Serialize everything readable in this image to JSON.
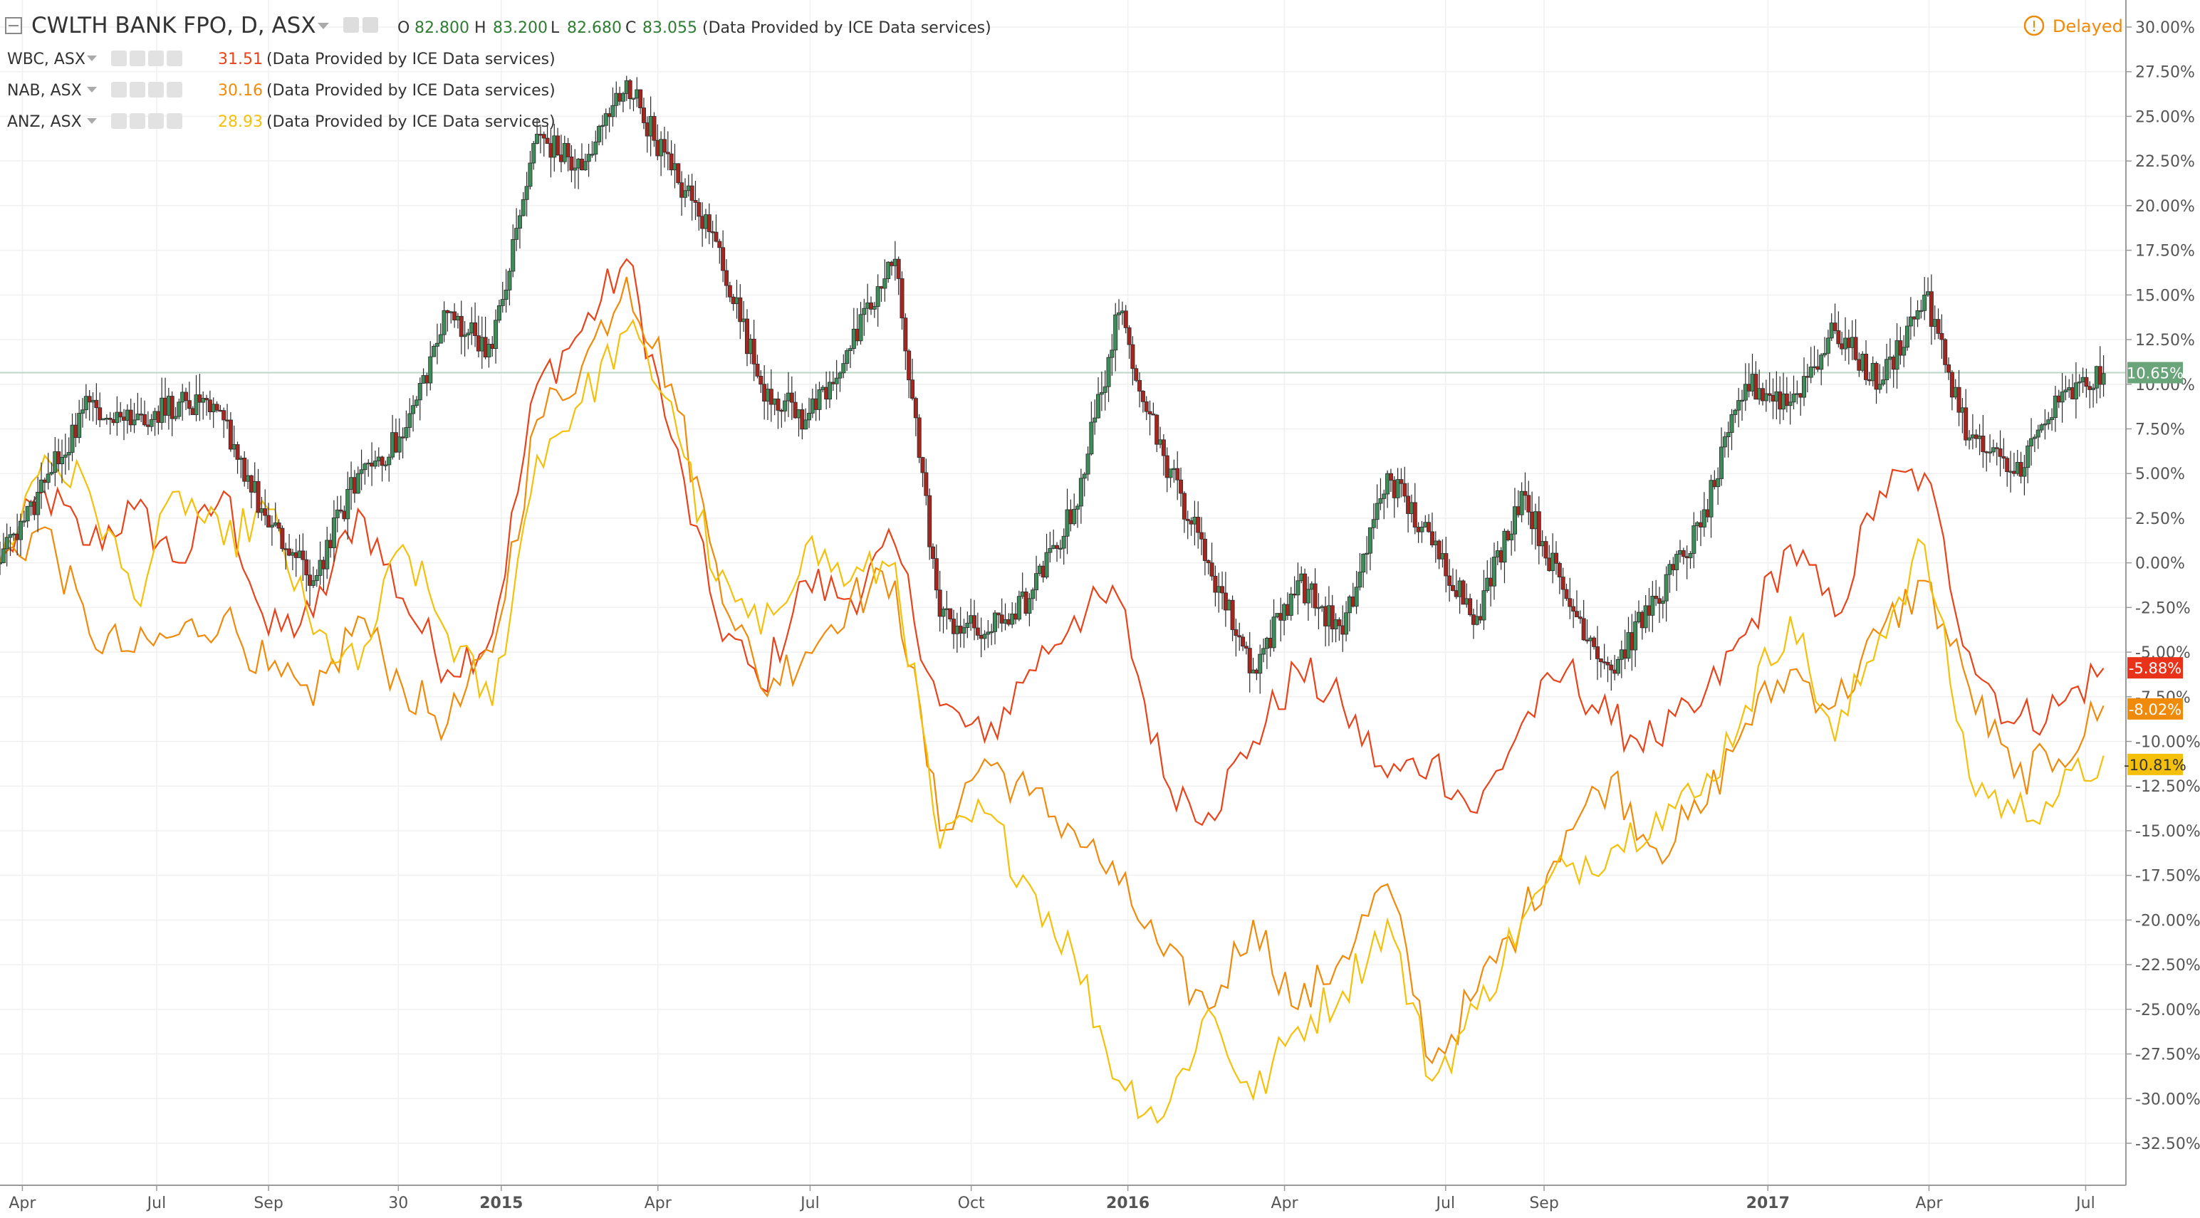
{
  "header": {
    "main_symbol": "CWLTH BANK FPO, D, ASX",
    "ohlc": [
      {
        "key": "O",
        "value": "82.800"
      },
      {
        "key": "H",
        "value": "83.200"
      },
      {
        "key": "L",
        "value": "82.680"
      },
      {
        "key": "C",
        "value": "83.055"
      }
    ],
    "data_provider": "(Data Provided by ICE Data services)",
    "delayed_label": "Delayed"
  },
  "legend": [
    {
      "symbol": "WBC, ASX",
      "value": "31.51",
      "color": "#e8431a",
      "provider": "(Data Provided by ICE Data services)"
    },
    {
      "symbol": "NAB, ASX",
      "value": "30.16",
      "color": "#f08a0a",
      "provider": "(Data Provided by ICE Data services)"
    },
    {
      "symbol": "ANZ, ASX",
      "value": "28.93",
      "color": "#f4c00a",
      "provider": "(Data Provided by ICE Data services)"
    }
  ],
  "chart_data": {
    "type": "line",
    "y_unit": "%",
    "ylim": [
      -35.0,
      31.25
    ],
    "y_ticks": [
      "30.00%",
      "27.50%",
      "25.00%",
      "22.50%",
      "20.00%",
      "17.50%",
      "15.00%",
      "12.50%",
      "10.00%",
      "7.50%",
      "5.00%",
      "2.50%",
      "0.00%",
      "-2.50%",
      "-5.00%",
      "-7.50%",
      "-10.00%",
      "-12.50%",
      "-15.00%",
      "-17.50%",
      "-20.00%",
      "-22.50%",
      "-25.00%",
      "-27.50%",
      "-30.00%",
      "-32.50%"
    ],
    "y_tick_values": [
      30,
      27.5,
      25,
      22.5,
      20,
      17.5,
      15,
      12.5,
      10,
      7.5,
      5,
      2.5,
      0,
      -2.5,
      -5,
      -7.5,
      -10,
      -12.5,
      -15,
      -17.5,
      -20,
      -22.5,
      -25,
      -27.5,
      -30,
      -32.5
    ],
    "x_ticks": [
      {
        "label": "Apr",
        "t": 0.5,
        "bold": false
      },
      {
        "label": "Jul",
        "t": 3.5,
        "bold": false
      },
      {
        "label": "Sep",
        "t": 6.0,
        "bold": false
      },
      {
        "label": "30",
        "t": 8.9,
        "bold": false
      },
      {
        "label": "2015",
        "t": 11.2,
        "bold": true
      },
      {
        "label": "Apr",
        "t": 14.7,
        "bold": false
      },
      {
        "label": "Jul",
        "t": 18.1,
        "bold": false
      },
      {
        "label": "Oct",
        "t": 21.7,
        "bold": false
      },
      {
        "label": "2016",
        "t": 25.2,
        "bold": true
      },
      {
        "label": "Apr",
        "t": 28.7,
        "bold": false
      },
      {
        "label": "Jul",
        "t": 32.3,
        "bold": false
      },
      {
        "label": "Sep",
        "t": 34.5,
        "bold": false
      },
      {
        "label": "2017",
        "t": 39.5,
        "bold": true
      },
      {
        "label": "Apr",
        "t": 43.1,
        "bold": false
      },
      {
        "label": "Jul",
        "t": 46.6,
        "bold": false
      }
    ],
    "xlim": [
      0,
      47.5
    ],
    "current_line": 10.65,
    "series": [
      {
        "name": "CWLTH BANK FPO",
        "style": "candles",
        "up_color": "#3d8c5a",
        "down_color": "#a6261f",
        "t": [
          0,
          1,
          2,
          3,
          4,
          5,
          6,
          7,
          8,
          9,
          10,
          11,
          12,
          13,
          14,
          15,
          16,
          17,
          18,
          19,
          20,
          21,
          22,
          23,
          24,
          25,
          26,
          27,
          28,
          29,
          30,
          31,
          32,
          33,
          34,
          35,
          36,
          37,
          38,
          39,
          40,
          41,
          42,
          43,
          44,
          45,
          46,
          47
        ],
        "values": [
          0,
          4.5,
          9,
          8,
          9,
          8,
          2,
          -1,
          5,
          7,
          14,
          12,
          24,
          22,
          27,
          22,
          18,
          10,
          8,
          12,
          17,
          -3,
          -4,
          -2,
          3,
          14,
          6,
          0,
          -6,
          -1,
          -4,
          5,
          1,
          -3,
          4,
          -2,
          -6,
          -2,
          2,
          10,
          9,
          13,
          10,
          15,
          7,
          5,
          9,
          10.6
        ]
      },
      {
        "name": "WBC",
        "style": "line",
        "color": "#e8431a",
        "t": [
          0,
          1,
          2,
          3,
          4,
          5,
          6,
          7,
          8,
          9,
          10,
          11,
          12,
          13,
          14,
          15,
          16,
          17,
          18,
          19,
          20,
          21,
          22,
          23,
          24,
          25,
          26,
          27,
          28,
          29,
          30,
          31,
          32,
          33,
          34,
          35,
          36,
          37,
          38,
          39,
          40,
          41,
          42,
          43,
          44,
          45,
          46,
          47
        ],
        "values": [
          0,
          4,
          1,
          3,
          0,
          4,
          -4,
          -3,
          3,
          -2,
          -6,
          -4,
          10,
          13,
          17,
          7,
          -3,
          -7,
          -1,
          -2,
          1,
          -8,
          -10,
          -6,
          -3,
          -2,
          -12,
          -14,
          -10,
          -6,
          -8,
          -12,
          -11,
          -14,
          -9,
          -6,
          -9,
          -10,
          -8,
          -4,
          1,
          -3,
          4,
          5,
          -5,
          -9,
          -8,
          -5.9
        ]
      },
      {
        "name": "NAB",
        "style": "line",
        "color": "#f08a0a",
        "t": [
          0,
          1,
          2,
          3,
          4,
          5,
          6,
          7,
          8,
          9,
          10,
          11,
          12,
          13,
          14,
          15,
          16,
          17,
          18,
          19,
          20,
          21,
          22,
          23,
          24,
          25,
          26,
          27,
          28,
          29,
          30,
          31,
          32,
          33,
          34,
          35,
          36,
          37,
          38,
          39,
          40,
          41,
          42,
          43,
          44,
          45,
          46,
          47
        ],
        "values": [
          0,
          2,
          -4,
          -5,
          -4,
          -3,
          -6,
          -8,
          -3,
          -7,
          -9,
          -5,
          8,
          11,
          16,
          10,
          0,
          -7,
          -5,
          -2,
          -1,
          -15,
          -11,
          -13,
          -15,
          -18,
          -22,
          -25,
          -20,
          -25,
          -22,
          -18,
          -28,
          -24,
          -20,
          -15,
          -12,
          -16,
          -14,
          -9,
          -6,
          -8,
          -4,
          -1,
          -7,
          -12,
          -11,
          -8.0
        ]
      },
      {
        "name": "ANZ",
        "style": "line",
        "color": "#f4c00a",
        "t": [
          0,
          1,
          2,
          3,
          4,
          5,
          6,
          7,
          8,
          9,
          10,
          11,
          12,
          13,
          14,
          15,
          16,
          17,
          18,
          19,
          20,
          21,
          22,
          23,
          24,
          25,
          26,
          27,
          28,
          29,
          30,
          31,
          32,
          33,
          34,
          35,
          36,
          37,
          38,
          39,
          40,
          41,
          42,
          43,
          44,
          45,
          46,
          47
        ],
        "values": [
          0,
          6,
          4,
          -2,
          4,
          1,
          3,
          -4,
          -6,
          1,
          -4,
          -8,
          6,
          9,
          13,
          9,
          -1,
          -4,
          1,
          -1,
          0,
          -16,
          -14,
          -18,
          -22,
          -29,
          -31,
          -25,
          -30,
          -26,
          -24,
          -20,
          -29,
          -25,
          -20,
          -17,
          -16,
          -14,
          -13,
          -8,
          -3,
          -10,
          -4,
          1,
          -12,
          -14,
          -13,
          -10.8
        ]
      }
    ],
    "last_values": [
      {
        "label": "10.65%",
        "value": 10.65,
        "color": "#6aa47a"
      },
      {
        "label": "-5.88%",
        "value": -5.88,
        "color": "#e8331a"
      },
      {
        "label": "-8.02%",
        "value": -8.02,
        "color": "#f08a0a"
      },
      {
        "label": "-10.81%",
        "value": -10.81,
        "color": "#f4c00a"
      }
    ]
  }
}
